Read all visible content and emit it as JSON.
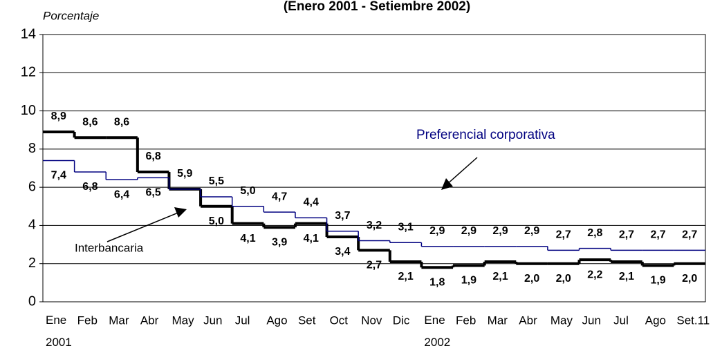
{
  "chart_data": {
    "type": "step-line",
    "title": "(Enero 2001 - Setiembre 2002)",
    "y_label": "Porcentaje",
    "categories": [
      "Ene 2001",
      "Feb",
      "Mar",
      "Abr",
      "May",
      "Jun",
      "Jul",
      "Ago",
      "Set",
      "Oct",
      "Nov",
      "Dic",
      "Ene 2002",
      "Feb",
      "Mar",
      "Abr",
      "May",
      "Jun",
      "Jul",
      "Ago",
      "Set.11"
    ],
    "series": [
      {
        "name": "Interbancaria",
        "color": "#000000",
        "values": [
          8.9,
          8.6,
          8.6,
          6.8,
          5.9,
          5.0,
          4.1,
          3.9,
          4.1,
          3.4,
          2.7,
          2.1,
          1.8,
          1.9,
          2.1,
          2.0,
          2.0,
          2.2,
          2.1,
          1.9,
          2.0
        ],
        "value_labels": [
          "8,9",
          "8,6",
          "8,6",
          "6,8",
          "5,9",
          "5,0",
          "4,1",
          "3,9",
          "4,1",
          "3,4",
          "2,7",
          "2,1",
          "1,8",
          "1,9",
          "2,1",
          "2,0",
          "2,0",
          "2,2",
          "2,1",
          "1,9",
          "2,0"
        ]
      },
      {
        "name": "Preferencial corporativa",
        "color": "#000080",
        "values": [
          7.4,
          6.8,
          6.4,
          6.5,
          5.9,
          5.5,
          5.0,
          4.7,
          4.4,
          3.7,
          3.2,
          3.1,
          2.9,
          2.9,
          2.9,
          2.9,
          2.7,
          2.8,
          2.7,
          2.7,
          2.7
        ],
        "value_labels": [
          "7,4",
          "6,8",
          "6,4",
          "6,5",
          null,
          "5,5",
          "5,0",
          "4,7",
          "4,4",
          "3,7",
          "3,2",
          "3,1",
          "2,9",
          "2,9",
          "2,9",
          "2,9",
          "2,7",
          "2,8",
          "2,7",
          "2,7",
          "2,7"
        ]
      }
    ],
    "ylim": [
      0,
      14
    ],
    "yticks": [
      0,
      2,
      4,
      6,
      8,
      10,
      12,
      14
    ],
    "grid": true
  }
}
